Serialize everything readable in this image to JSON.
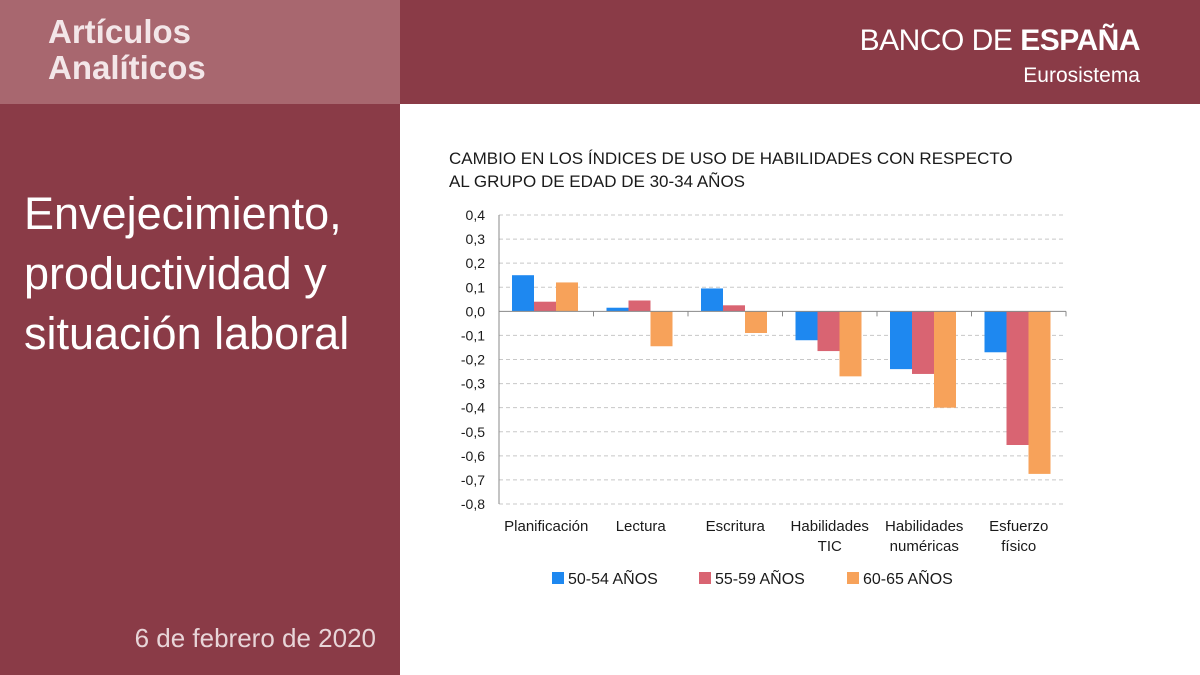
{
  "header": {
    "series_title_line1": "Artículos",
    "series_title_line2": "Analíticos",
    "brand_light": "BANCO DE ",
    "brand_bold": "ESPAÑA",
    "brand_sub": "Eurosistema"
  },
  "article": {
    "title": "Envejecimiento, productividad y situación laboral",
    "date": "6 de febrero de 2020"
  },
  "colors": {
    "panel": "#8a3b47",
    "series_box": "#a8676f",
    "s1": "#1e88f0",
    "s2": "#d96472",
    "s3": "#f7a25a"
  },
  "chart_data": {
    "type": "bar",
    "title_line1": "CAMBIO EN LOS ÍNDICES DE USO DE HABILIDADES CON RESPECTO",
    "title_line2": "AL GRUPO DE EDAD DE 30-34 AÑOS",
    "categories": [
      [
        "Planificación"
      ],
      [
        "Lectura"
      ],
      [
        "Escritura"
      ],
      [
        "Habilidades",
        "TIC"
      ],
      [
        "Habilidades",
        "numéricas"
      ],
      [
        "Esfuerzo",
        "físico"
      ]
    ],
    "series": [
      {
        "name": "50-54 AÑOS",
        "color": "#1e88f0",
        "values": [
          0.15,
          0.015,
          0.095,
          -0.12,
          -0.24,
          -0.17
        ]
      },
      {
        "name": "55-59 AÑOS",
        "color": "#d96472",
        "values": [
          0.04,
          0.045,
          0.025,
          -0.165,
          -0.26,
          -0.555
        ]
      },
      {
        "name": "60-65 AÑOS",
        "color": "#f7a25a",
        "values": [
          0.12,
          -0.145,
          -0.09,
          -0.27,
          -0.4,
          -0.675
        ]
      }
    ],
    "ylim": [
      -0.8,
      0.4
    ],
    "yticks": [
      "0,4",
      "0,3",
      "0,2",
      "0,1",
      "0,0",
      "-0,1",
      "-0,2",
      "-0,3",
      "-0,4",
      "-0,5",
      "-0,6",
      "-0,7",
      "-0,8"
    ],
    "grid": true,
    "legend": "bottom"
  }
}
